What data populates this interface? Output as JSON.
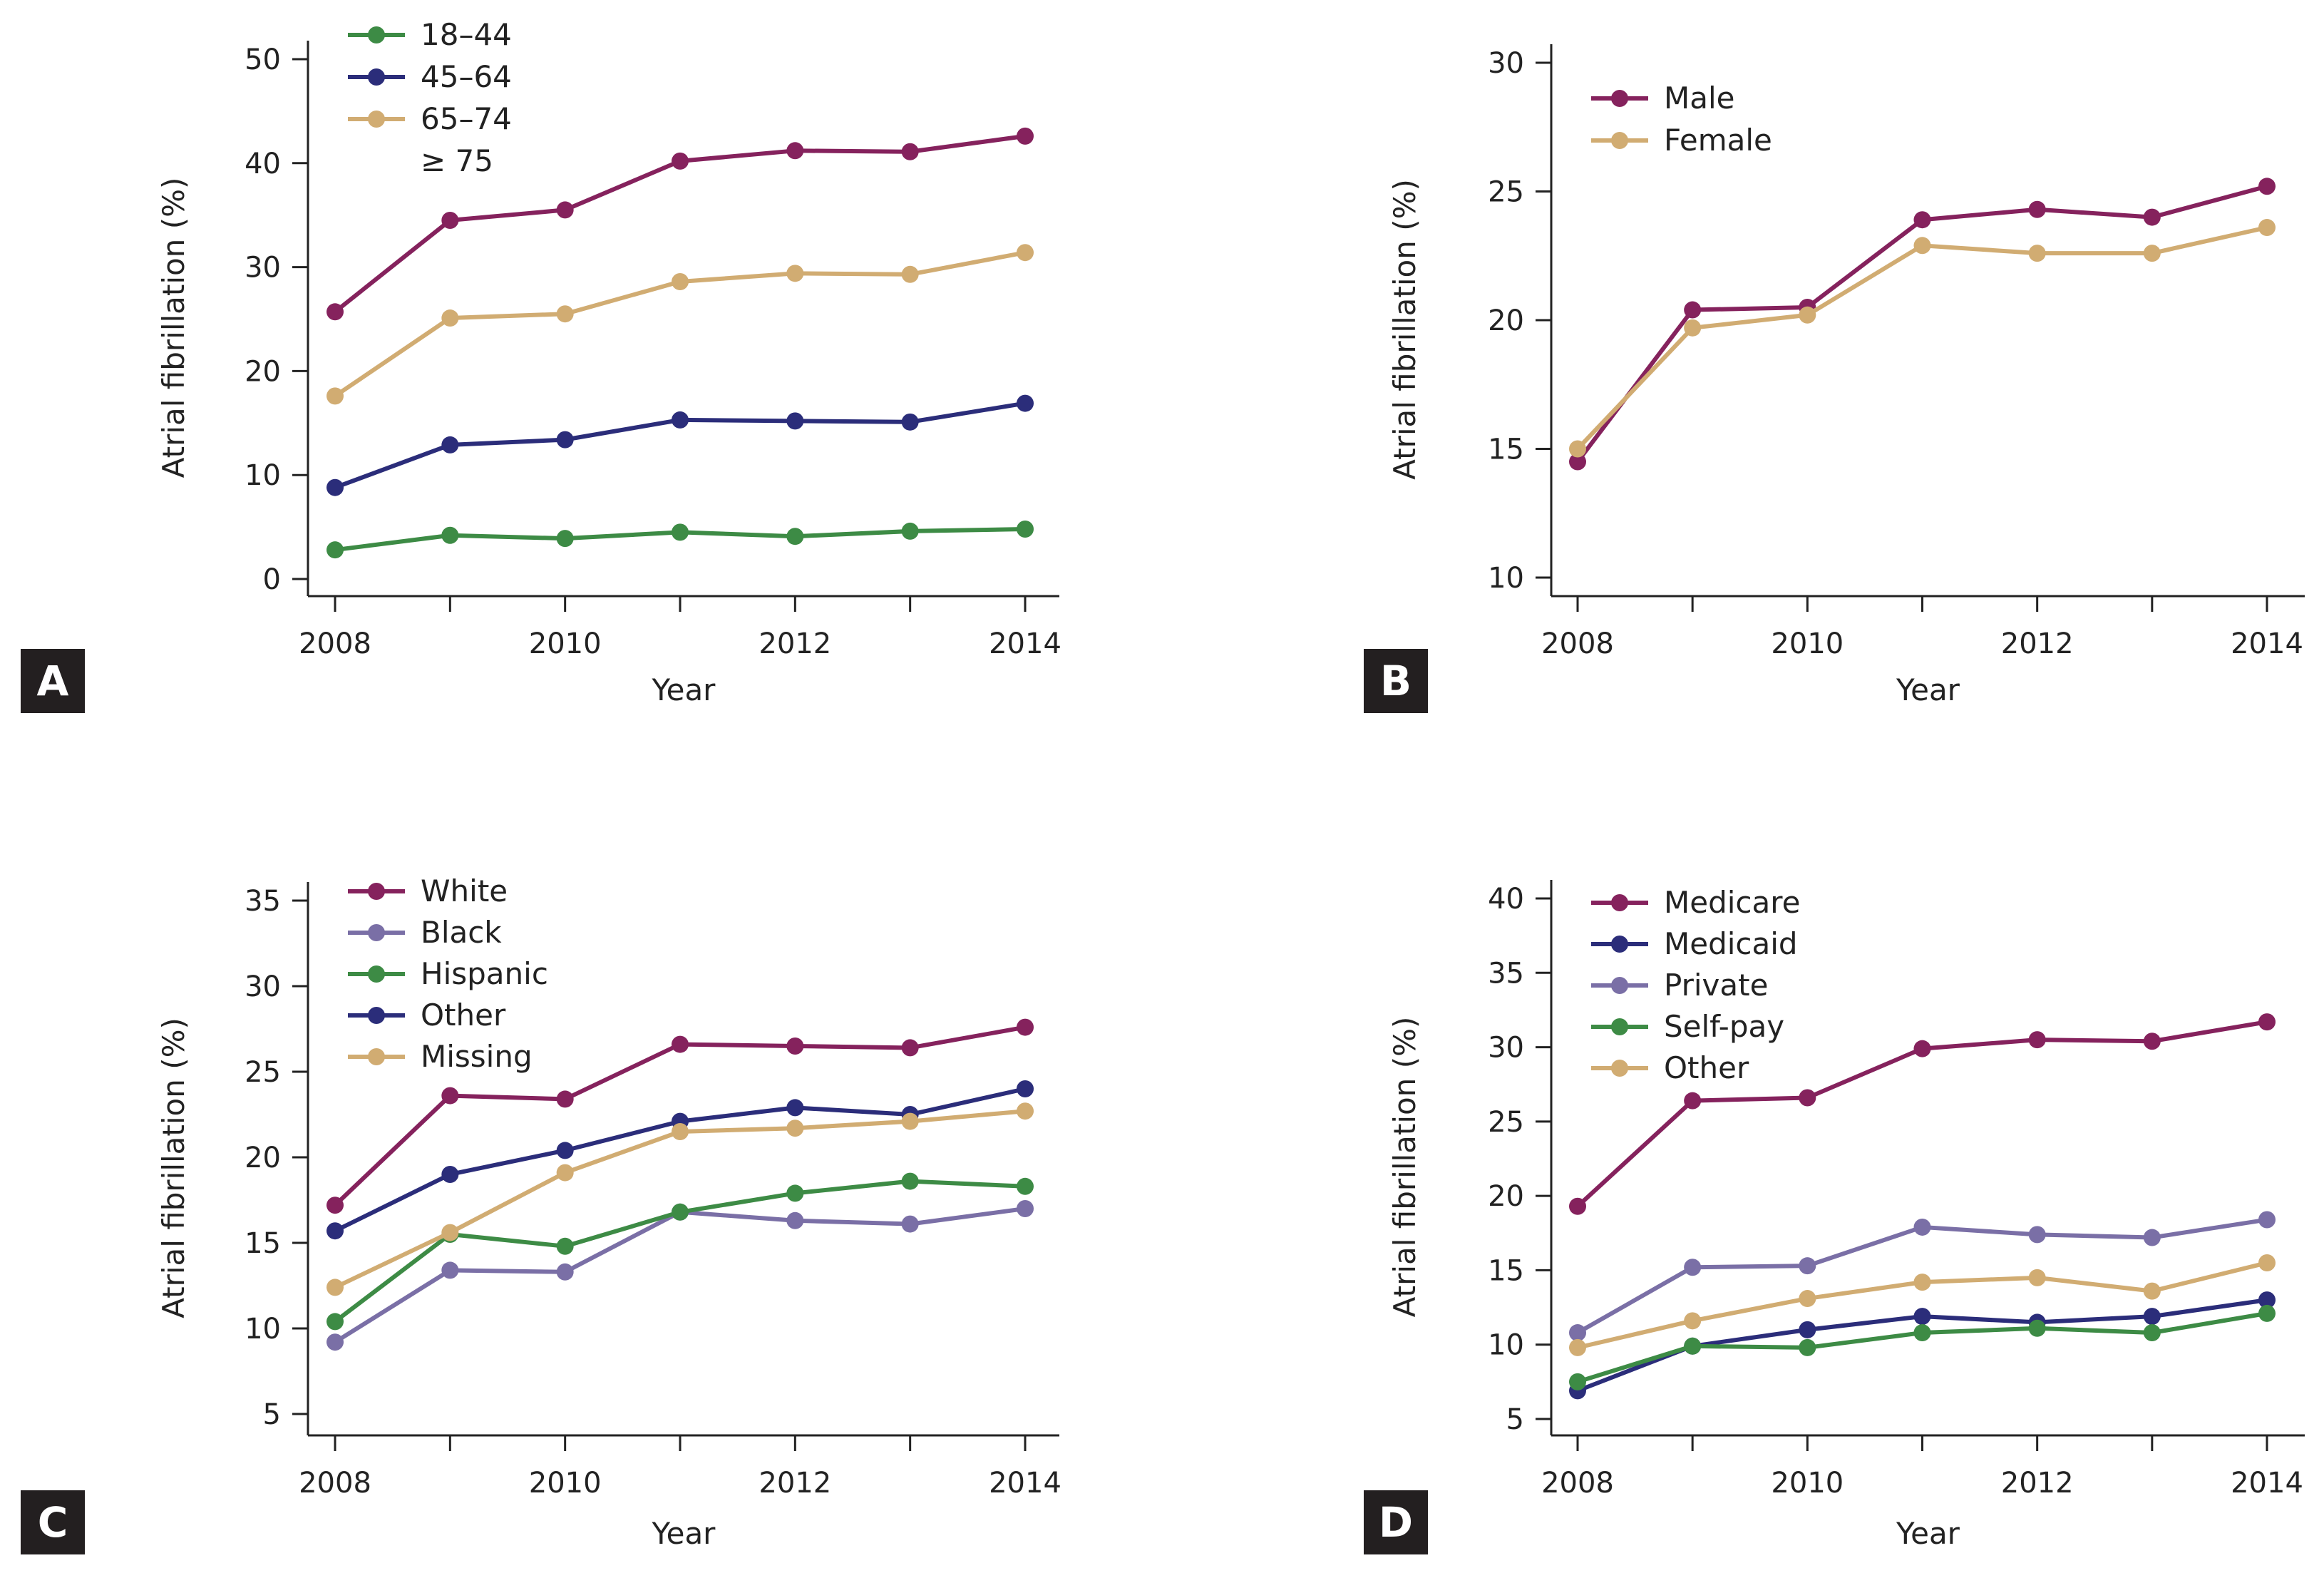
{
  "chart_data": [
    {
      "panel": "A",
      "type": "line",
      "x": [
        2008,
        2009,
        2010,
        2011,
        2012,
        2013,
        2014
      ],
      "xticks": [
        2008,
        2010,
        2012,
        2014
      ],
      "xlabel": "Year",
      "ylabel": "Atrial fibrillation (%)",
      "ylim": [
        0,
        50
      ],
      "yticks": [
        0,
        10,
        20,
        30,
        40,
        50
      ],
      "legend_position": "top-left",
      "series": [
        {
          "name": "18–44",
          "color": "#3d8b45",
          "values": [
            2.8,
            4.2,
            3.9,
            4.5,
            4.1,
            4.6,
            4.8
          ]
        },
        {
          "name": "45–64",
          "color": "#2b2d7a",
          "values": [
            8.8,
            12.9,
            13.4,
            15.3,
            15.2,
            15.1,
            16.9
          ]
        },
        {
          "name": "65–74",
          "color": "#d1ac72",
          "values": [
            17.6,
            25.1,
            25.5,
            28.6,
            29.4,
            29.3,
            31.4
          ]
        },
        {
          "name": "≥ 75",
          "color": "#85225d",
          "values": [
            25.7,
            34.5,
            35.5,
            40.2,
            41.2,
            41.1,
            42.6
          ]
        }
      ]
    },
    {
      "panel": "B",
      "type": "line",
      "x": [
        2008,
        2009,
        2010,
        2011,
        2012,
        2013,
        2014
      ],
      "xticks": [
        2008,
        2010,
        2012,
        2014
      ],
      "xlabel": "Year",
      "ylabel": "Atrial fibrillation (%)",
      "ylim": [
        10,
        30
      ],
      "yticks": [
        10,
        15,
        20,
        25,
        30
      ],
      "legend_position": "top-left",
      "series": [
        {
          "name": "Male",
          "color": "#85225d",
          "values": [
            14.5,
            20.4,
            20.5,
            23.9,
            24.3,
            24.0,
            25.2
          ]
        },
        {
          "name": "Female",
          "color": "#d1ac72",
          "values": [
            15.0,
            19.7,
            20.2,
            22.9,
            22.6,
            22.6,
            23.6
          ]
        }
      ]
    },
    {
      "panel": "C",
      "type": "line",
      "x": [
        2008,
        2009,
        2010,
        2011,
        2012,
        2013,
        2014
      ],
      "xticks": [
        2008,
        2010,
        2012,
        2014
      ],
      "xlabel": "Year",
      "ylabel": "Atrial fibrillation (%)",
      "ylim": [
        5,
        35
      ],
      "yticks": [
        5,
        10,
        15,
        20,
        25,
        30,
        35
      ],
      "legend_position": "top-left",
      "series": [
        {
          "name": "White",
          "color": "#85225d",
          "values": [
            17.2,
            23.6,
            23.4,
            26.6,
            26.5,
            26.4,
            27.6
          ]
        },
        {
          "name": "Black",
          "color": "#7a6fa6",
          "values": [
            9.2,
            13.4,
            13.3,
            16.8,
            16.3,
            16.1,
            17.0
          ]
        },
        {
          "name": "Hispanic",
          "color": "#3d8b45",
          "values": [
            10.4,
            15.5,
            14.8,
            16.8,
            17.9,
            18.6,
            18.3
          ]
        },
        {
          "name": "Other",
          "color": "#2b2d7a",
          "values": [
            15.7,
            19.0,
            20.4,
            22.1,
            22.9,
            22.5,
            24.0
          ]
        },
        {
          "name": "Missing",
          "color": "#d1ac72",
          "values": [
            12.4,
            15.6,
            19.1,
            21.5,
            21.7,
            22.1,
            22.7
          ]
        }
      ]
    },
    {
      "panel": "D",
      "type": "line",
      "x": [
        2008,
        2009,
        2010,
        2011,
        2012,
        2013,
        2014
      ],
      "xticks": [
        2008,
        2010,
        2012,
        2014
      ],
      "xlabel": "Year",
      "ylabel": "Atrial fibrillation (%)",
      "ylim": [
        5,
        40
      ],
      "yticks": [
        5,
        10,
        15,
        20,
        25,
        30,
        35,
        40
      ],
      "legend_position": "top-left",
      "series": [
        {
          "name": "Medicare",
          "color": "#85225d",
          "values": [
            19.3,
            26.4,
            26.6,
            29.9,
            30.5,
            30.4,
            31.7
          ]
        },
        {
          "name": "Medicaid",
          "color": "#2b2d7a",
          "values": [
            6.9,
            9.9,
            11.0,
            11.9,
            11.5,
            11.9,
            13.0
          ]
        },
        {
          "name": "Private",
          "color": "#7a6fa6",
          "values": [
            10.8,
            15.2,
            15.3,
            17.9,
            17.4,
            17.2,
            18.4
          ]
        },
        {
          "name": "Self-pay",
          "color": "#3d8b45",
          "values": [
            7.5,
            9.9,
            9.8,
            10.8,
            11.1,
            10.8,
            12.1
          ]
        },
        {
          "name": "Other",
          "color": "#d1ac72",
          "values": [
            9.8,
            11.6,
            13.1,
            14.2,
            14.5,
            13.6,
            15.5
          ]
        }
      ]
    }
  ]
}
